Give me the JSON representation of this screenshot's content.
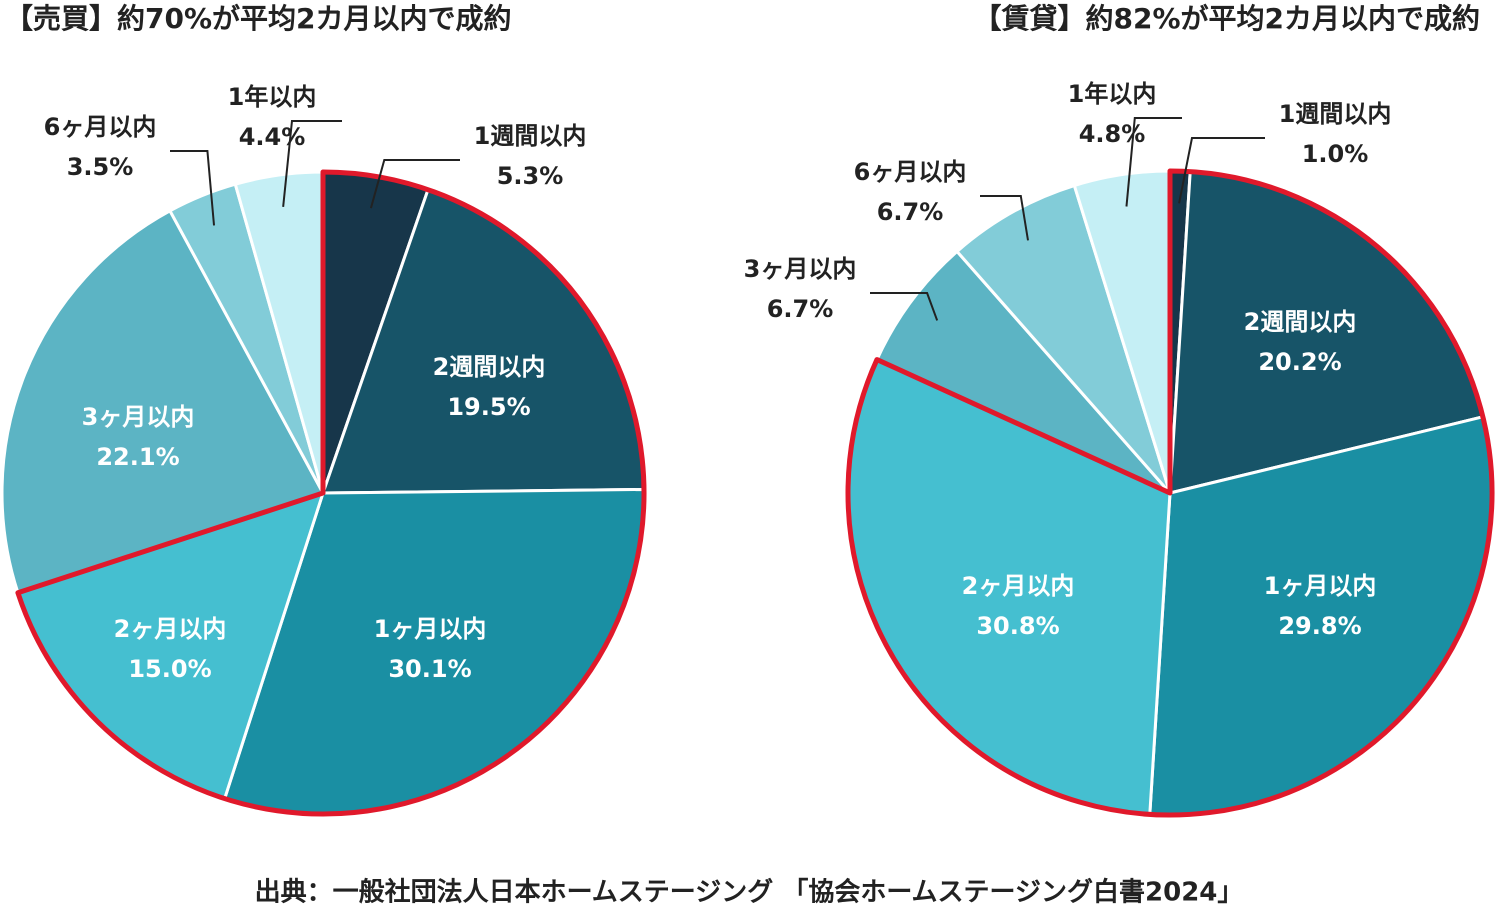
{
  "chart_data": [
    {
      "type": "pie",
      "title": "【売買】約70%が平均2カ月以内で成約",
      "categories": [
        "1週間以内",
        "2週間以内",
        "1ヶ月以内",
        "2ヶ月以内",
        "3ヶ月以内",
        "6ヶ月以内",
        "1年以内"
      ],
      "values": [
        5.3,
        19.5,
        30.1,
        15.0,
        22.1,
        3.5,
        4.4
      ],
      "value_labels": [
        "5.3%",
        "19.5%",
        "30.1%",
        "15.0%",
        "22.1%",
        "3.5%",
        "4.4%"
      ],
      "colors": [
        "#17364a",
        "#175468",
        "#1a8fa3",
        "#45bfd0",
        "#5cb4c4",
        "#82ccd8",
        "#c5eff5"
      ],
      "highlight": {
        "color": "#e0192b",
        "count": 4
      }
    },
    {
      "type": "pie",
      "title": "【賃貸】約82%が平均2カ月以内で成約",
      "categories": [
        "1週間以内",
        "2週間以内",
        "1ヶ月以内",
        "2ヶ月以内",
        "3ヶ月以内",
        "6ヶ月以内",
        "1年以内"
      ],
      "values": [
        1.0,
        20.2,
        29.8,
        30.8,
        6.7,
        6.7,
        4.8
      ],
      "value_labels": [
        "1.0%",
        "20.2%",
        "29.8%",
        "30.8%",
        "6.7%",
        "6.7%",
        "4.8%"
      ],
      "colors": [
        "#17364a",
        "#175468",
        "#1a8fa3",
        "#45bfd0",
        "#5cb4c4",
        "#82ccd8",
        "#c5eff5"
      ],
      "highlight": {
        "color": "#e0192b",
        "count": 4
      }
    }
  ],
  "source": "出典：一般社団法人日本ホームステージング 「協会ホームステージング白書2024」"
}
